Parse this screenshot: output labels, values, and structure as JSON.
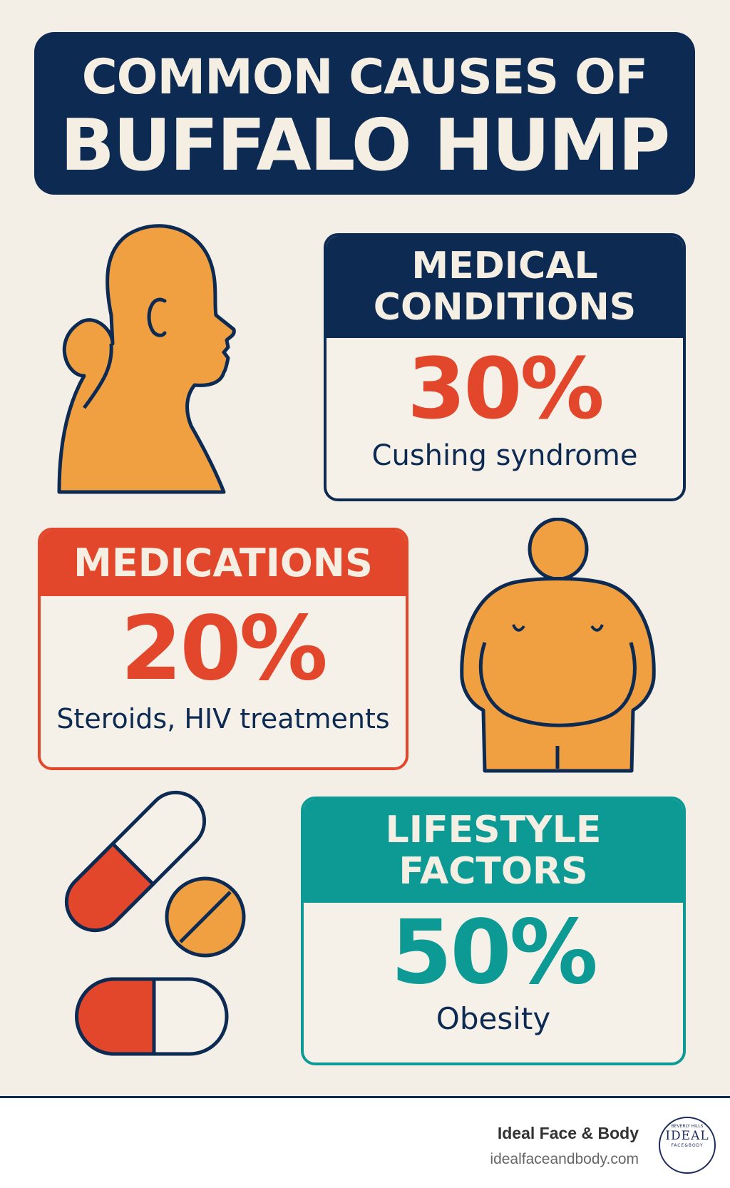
{
  "title": {
    "line1": "COMMON CAUSES OF",
    "line2": "BUFFALO HUMP"
  },
  "colors": {
    "navy": "#0d2a52",
    "red": "#e2472b",
    "orange": "#f0a040",
    "teal": "#0e9a94",
    "background": "#f4efe6"
  },
  "cards": [
    {
      "heading_line1": "MEDICAL",
      "heading_line2": "CONDITIONS",
      "percent": "30%",
      "description": "Cushing syndrome"
    },
    {
      "heading_line1": "MEDICATIONS",
      "percent": "20%",
      "description": "Steroids, HIV treatments"
    },
    {
      "heading_line1": "LIFESTYLE",
      "heading_line2": "FACTORS",
      "percent": "50%",
      "description": "Obesity"
    }
  ],
  "footer": {
    "brand": "Ideal Face & Body",
    "url": "idealfaceandbody.com",
    "logo_text": "IDEAL",
    "logo_subtext": "FACE&BODY",
    "logo_top": "BEVERLY HILLS"
  },
  "icons": [
    "head-profile-hump-icon",
    "obese-body-icon",
    "pills-icon",
    "logo-seal-icon"
  ]
}
